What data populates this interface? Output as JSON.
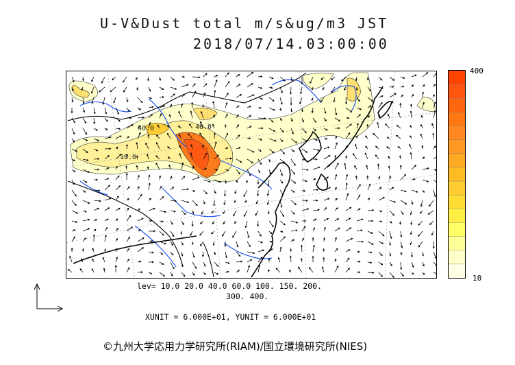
{
  "title": {
    "line1": "U-V&Dust total m/s&ug/m3 JST",
    "line2": "2018/07/14.03:00:00"
  },
  "colorbar": {
    "max_label": "400",
    "min_label": "10",
    "levels": [
      10,
      20,
      40,
      60,
      100,
      150,
      200,
      300,
      400
    ],
    "colors": [
      "#ffffe6",
      "#ffffc8",
      "#ffff99",
      "#ffff66",
      "#ffee44",
      "#ffdd33",
      "#ffcc33",
      "#ffbb22",
      "#ffaa22",
      "#ff9922",
      "#ff8822",
      "#ff7711",
      "#ff6611",
      "#ff5511",
      "#ff4400"
    ]
  },
  "map": {
    "contour_labels": [
      "40.0",
      "40.0",
      "10.0"
    ],
    "dust_color_low": "#ffffcc",
    "dust_color_mid": "#ffdd55",
    "dust_color_high": "#ff5a14",
    "river_color": "#2255ee"
  },
  "legend": {
    "levels_line1": "lev= 10.0 20.0 40.0 60.0 100. 150. 200.",
    "levels_line2": "300. 400.",
    "units": "XUNIT = 6.000E+01, YUNIT = 6.000E+01"
  },
  "credit": "©九州大学応用力学研究所(RIAM)/国立環境研究所(NIES)"
}
